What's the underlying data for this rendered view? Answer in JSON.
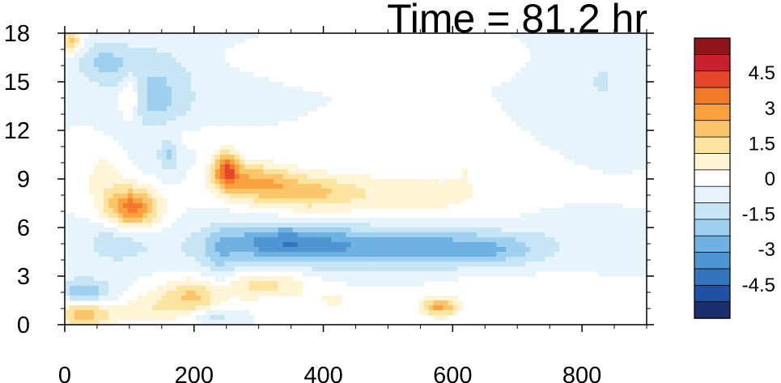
{
  "chart_data": {
    "type": "heatmap",
    "title": "Time = 81.2 hr",
    "xlabel": "",
    "ylabel": "",
    "xlim": [
      0,
      900
    ],
    "ylim": [
      0,
      18
    ],
    "x_ticks": [
      "0",
      "200",
      "400",
      "600",
      "800"
    ],
    "y_ticks": [
      "0",
      "3",
      "6",
      "9",
      "12",
      "15",
      "18"
    ],
    "colorbar": {
      "levels": [
        -5.25,
        -4.5,
        -3.75,
        -3,
        -2.25,
        -1.5,
        -0.75,
        0,
        0.75,
        1.5,
        2.25,
        3,
        3.75,
        4.5,
        5.25
      ],
      "tick_labels": [
        "4.5",
        "3",
        "1.5",
        "0",
        "-1.5",
        "-3",
        "-4.5"
      ],
      "tick_values": [
        4.5,
        3,
        1.5,
        0,
        -1.5,
        -3,
        -4.5
      ],
      "colors": [
        "#1a2f6b",
        "#2050a4",
        "#3375bd",
        "#4e95d1",
        "#6fb2e2",
        "#9fd0ef",
        "#c8e5f5",
        "#e8f4fb",
        "#ffffff",
        "#fff5d6",
        "#fde3a0",
        "#fbc56a",
        "#f9a23f",
        "#f27a2b",
        "#e4472a",
        "#c9202b",
        "#8f1518"
      ]
    },
    "features": [
      {
        "x": 105,
        "y": 7.2,
        "sx": 28,
        "sy": 0.9,
        "v": 4.2
      },
      {
        "x": 250,
        "y": 9.6,
        "sx": 14,
        "sy": 0.8,
        "v": 3.8
      },
      {
        "x": 290,
        "y": 8.9,
        "sx": 40,
        "sy": 0.8,
        "v": 2.6
      },
      {
        "x": 370,
        "y": 8.2,
        "sx": 55,
        "sy": 0.8,
        "v": 2.0
      },
      {
        "x": 520,
        "y": 8.0,
        "sx": 110,
        "sy": 1.0,
        "v": 1.2
      },
      {
        "x": 470,
        "y": 4.8,
        "sx": 170,
        "sy": 0.9,
        "v": -2.8
      },
      {
        "x": 330,
        "y": 5.2,
        "sx": 60,
        "sy": 0.8,
        "v": -1.8
      },
      {
        "x": 650,
        "y": 4.6,
        "sx": 60,
        "sy": 0.6,
        "v": -1.1
      },
      {
        "x": 30,
        "y": 0.7,
        "sx": 35,
        "sy": 0.6,
        "v": 2.8
      },
      {
        "x": 200,
        "y": 1.7,
        "sx": 40,
        "sy": 0.8,
        "v": 2.4
      },
      {
        "x": 310,
        "y": 2.5,
        "sx": 45,
        "sy": 0.6,
        "v": 1.8
      },
      {
        "x": 580,
        "y": 1.1,
        "sx": 20,
        "sy": 0.4,
        "v": 3.2
      },
      {
        "x": 30,
        "y": 2.0,
        "sx": 30,
        "sy": 0.6,
        "v": -2.2
      },
      {
        "x": 140,
        "y": 14.0,
        "sx": 45,
        "sy": 2.2,
        "v": -1.8
      },
      {
        "x": 60,
        "y": 16.2,
        "sx": 30,
        "sy": 0.9,
        "v": -1.6
      },
      {
        "x": 10,
        "y": 17.5,
        "sx": 12,
        "sy": 0.5,
        "v": 2.5
      },
      {
        "x": 100,
        "y": 14.0,
        "sx": 12,
        "sy": 1.0,
        "v": 2.0
      },
      {
        "x": 160,
        "y": 10.5,
        "sx": 10,
        "sy": 0.8,
        "v": -1.4
      },
      {
        "x": 60,
        "y": 9.2,
        "sx": 25,
        "sy": 1.5,
        "v": 1.0
      },
      {
        "x": 160,
        "y": 11.8,
        "sx": 40,
        "sy": 0.8,
        "v": 0.9
      },
      {
        "x": 80,
        "y": 5.2,
        "sx": 35,
        "sy": 1.0,
        "v": -1.2
      },
      {
        "x": 240,
        "y": 3.5,
        "sx": 20,
        "sy": 2.0,
        "v": -1.0
      },
      {
        "x": 420,
        "y": 16.5,
        "sx": 80,
        "sy": 0.4,
        "v": 0.7
      },
      {
        "x": 830,
        "y": 15.0,
        "sx": 30,
        "sy": 1.8,
        "v": -0.8
      },
      {
        "x": 620,
        "y": 10.0,
        "sx": 20,
        "sy": 0.8,
        "v": 0.6
      },
      {
        "x": 700,
        "y": 2.2,
        "sx": 80,
        "sy": 0.6,
        "v": 0.7
      },
      {
        "x": 780,
        "y": 6.3,
        "sx": 35,
        "sy": 0.5,
        "v": -0.6
      },
      {
        "x": 130,
        "y": 1.0,
        "sx": 30,
        "sy": 0.6,
        "v": 1.0
      },
      {
        "x": 230,
        "y": 0.6,
        "sx": 25,
        "sy": 0.3,
        "v": -1.2
      },
      {
        "x": 420,
        "y": 1.5,
        "sx": 40,
        "sy": 0.5,
        "v": 0.8
      }
    ]
  }
}
